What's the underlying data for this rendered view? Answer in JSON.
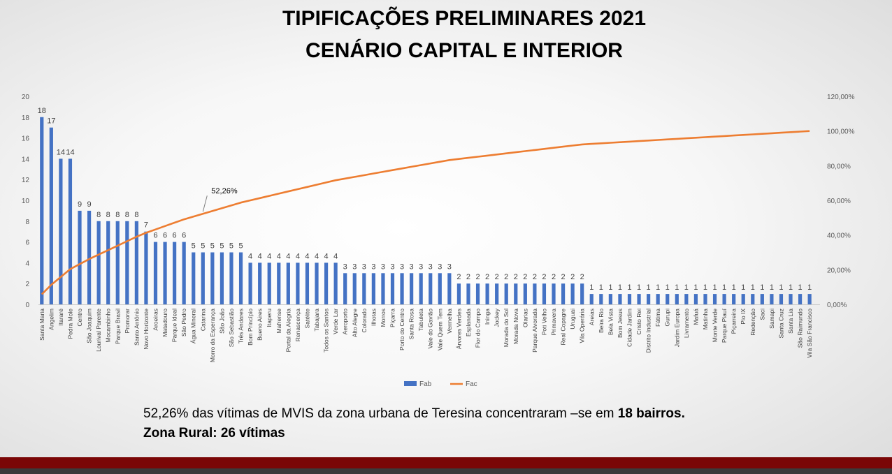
{
  "title_line1": "TIPIFICAÇÕES PRELIMINARES 2021",
  "title_line2": "CENÁRIO CAPITAL E INTERIOR",
  "summary": {
    "line1_prefix": "52,26% das vítimas de MVIS da zona urbana de Teresina concentraram –se em ",
    "line1_bold": "18 bairros.",
    "line2_bold": "Zona Rural: 26 vítimas"
  },
  "colors": {
    "bar": "#4472C4",
    "line": "#ED7D31",
    "footer": "#7a0606"
  },
  "chart_data": {
    "type": "bar",
    "categories": [
      "Santa Maria",
      "Angelim",
      "Itararé",
      "Pedra Mole",
      "Centro",
      "São Joaquim",
      "Lourival Parente",
      "Mocambinho",
      "Parque Brasil",
      "Promorar",
      "Santo Antônio",
      "Novo Horizonte",
      "Aroeiras",
      "Matadouro",
      "Parque Ideal",
      "São Pedro",
      "Água Mineral",
      "Catarina",
      "Morro da Esperança",
      "São João",
      "São Sebastião",
      "Três Andares",
      "Bom Princípio",
      "Bueno Aires",
      "Itaperu",
      "Mafrense",
      "Portal da Alegria",
      "Renascença",
      "Satélite",
      "Tabajara",
      "Todos os Santos",
      "Verde Lar",
      "Aeroporto",
      "Alto Alegre",
      "Colorado",
      "Ilhotas",
      "Morros",
      "Piçarra",
      "Porto do Centro",
      "Santa Rosa",
      "Tabuleta",
      "Vale do Gavião",
      "Vale Quem Tem",
      "Vermelha",
      "Árvores Verdes",
      "Esplanada",
      "Flor do Campo",
      "Ininga",
      "Jockey",
      "Morada do Sol",
      "Morada Nova",
      "Olarias",
      "Parque Alvorada",
      "Poti Velho",
      "Primavera",
      "Real Copagre",
      "Uruguai",
      "Vila Operária",
      "Areias",
      "Beira Rio",
      "Bela Vista",
      "Bom Jesus",
      "Cidade Jardim",
      "Cristo Rei",
      "Distrito Industrial",
      "Fátima",
      "Gurupi",
      "Jardim Europa",
      "Livramento",
      "Mafuá",
      "Matinha",
      "Monte Verde",
      "Parque Piauí",
      "Piçarreira",
      "Pio IX",
      "Redenção",
      "Saci",
      "Samapi",
      "Santa Cruz",
      "Santa Lia",
      "São Raimundo",
      "Vila São Francisco"
    ],
    "series": [
      {
        "name": "Fab",
        "type": "bar",
        "axis": "left",
        "values": [
          18,
          17,
          14,
          14,
          9,
          9,
          8,
          8,
          8,
          8,
          8,
          7,
          6,
          6,
          6,
          6,
          5,
          5,
          5,
          5,
          5,
          5,
          4,
          4,
          4,
          4,
          4,
          4,
          4,
          4,
          4,
          4,
          3,
          3,
          3,
          3,
          3,
          3,
          3,
          3,
          3,
          3,
          3,
          3,
          2,
          2,
          2,
          2,
          2,
          2,
          2,
          2,
          2,
          2,
          2,
          2,
          2,
          2,
          1,
          1,
          1,
          1,
          1,
          1,
          1,
          1,
          1,
          1,
          1,
          1,
          1,
          1,
          1,
          1,
          1,
          1,
          1,
          1,
          1,
          1,
          1,
          1
        ]
      },
      {
        "name": "Fac",
        "type": "line",
        "axis": "right"
      }
    ],
    "bar_labels": [
      "18",
      "17",
      "14",
      "14",
      "9",
      "9",
      "8",
      "8",
      "8",
      "8",
      "8",
      "7",
      "6",
      "6",
      "6",
      "6",
      "5",
      "5",
      "5",
      "5",
      "5",
      "5",
      "4",
      "4",
      "4",
      "4",
      "4",
      "4",
      "4",
      "4",
      "4",
      "4",
      "3",
      "3",
      "3",
      "3",
      "3",
      "3",
      "3",
      "3",
      "3",
      "3",
      "3",
      "3",
      "2",
      "2",
      "2",
      "2",
      "2",
      "2",
      "2",
      "2",
      "2",
      "2",
      "2",
      "2",
      "2",
      "2",
      "1",
      "1",
      "1",
      "1",
      "1",
      "1",
      "1",
      "1",
      "1",
      "1",
      "1",
      "1",
      "1",
      "1",
      "1",
      "1",
      "1",
      "1",
      "1",
      "1",
      "1",
      "1",
      "1",
      "1"
    ],
    "annotation": {
      "text": "52,26%",
      "index": 17
    },
    "y_left": {
      "min": 0,
      "max": 20,
      "ticks": [
        "0",
        "2",
        "4",
        "6",
        "8",
        "10",
        "12",
        "14",
        "16",
        "18",
        "20"
      ]
    },
    "y_right": {
      "min": 0,
      "max": 120,
      "ticks": [
        "0,00%",
        "20,00%",
        "40,00%",
        "60,00%",
        "80,00%",
        "100,00%",
        "120,00%"
      ]
    },
    "legend": {
      "position": "bottom",
      "items": [
        "Fab",
        "Fac"
      ]
    },
    "grid": false
  }
}
